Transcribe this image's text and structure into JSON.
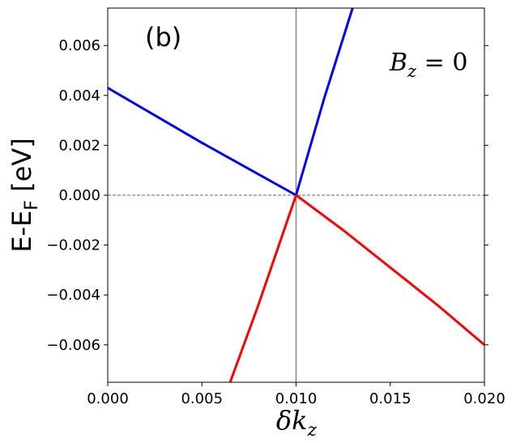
{
  "chart_data": {
    "type": "line",
    "panel_label": "(b)",
    "annotation": {
      "lhs": "B",
      "sub": "z",
      "rhs": " = 0"
    },
    "ylabel": {
      "main": "E-E",
      "sub": "F",
      "tail": " [eV]"
    },
    "xlabel": {
      "main": "δk",
      "sub": "z"
    },
    "xlim": [
      0.0,
      0.02
    ],
    "ylim": [
      -0.0075,
      0.0075
    ],
    "xticks": [
      0.0,
      0.005,
      0.01,
      0.015,
      0.02
    ],
    "xtick_labels": [
      "0.000",
      "0.005",
      "0.010",
      "0.015",
      "0.020"
    ],
    "yticks": [
      -0.006,
      -0.004,
      -0.002,
      0.0,
      0.002,
      0.004,
      0.006
    ],
    "ytick_labels": [
      "−0.006",
      "−0.004",
      "−0.002",
      "0.000",
      "0.002",
      "0.004",
      "0.006"
    ],
    "vline_x": 0.01,
    "hline_y": 0.0,
    "series": [
      {
        "color": "#0000ff",
        "x": [
          0.0,
          0.0025,
          0.005,
          0.0075,
          0.01
        ],
        "y": [
          0.0043,
          0.0032,
          0.0021,
          0.00105,
          0.0
        ]
      },
      {
        "color": "#0000ff",
        "x": [
          0.01,
          0.0115,
          0.013
        ],
        "y": [
          0.0,
          0.0039,
          0.0075
        ]
      },
      {
        "color": "#ff0000",
        "x": [
          0.0065,
          0.008,
          0.009,
          0.01
        ],
        "y": [
          -0.0075,
          -0.0044,
          -0.0022,
          0.0
        ]
      },
      {
        "color": "#ff0000",
        "x": [
          0.01,
          0.0125,
          0.015,
          0.0175,
          0.02
        ],
        "y": [
          0.0,
          -0.0014,
          -0.0029,
          -0.0044,
          -0.006
        ]
      }
    ]
  }
}
